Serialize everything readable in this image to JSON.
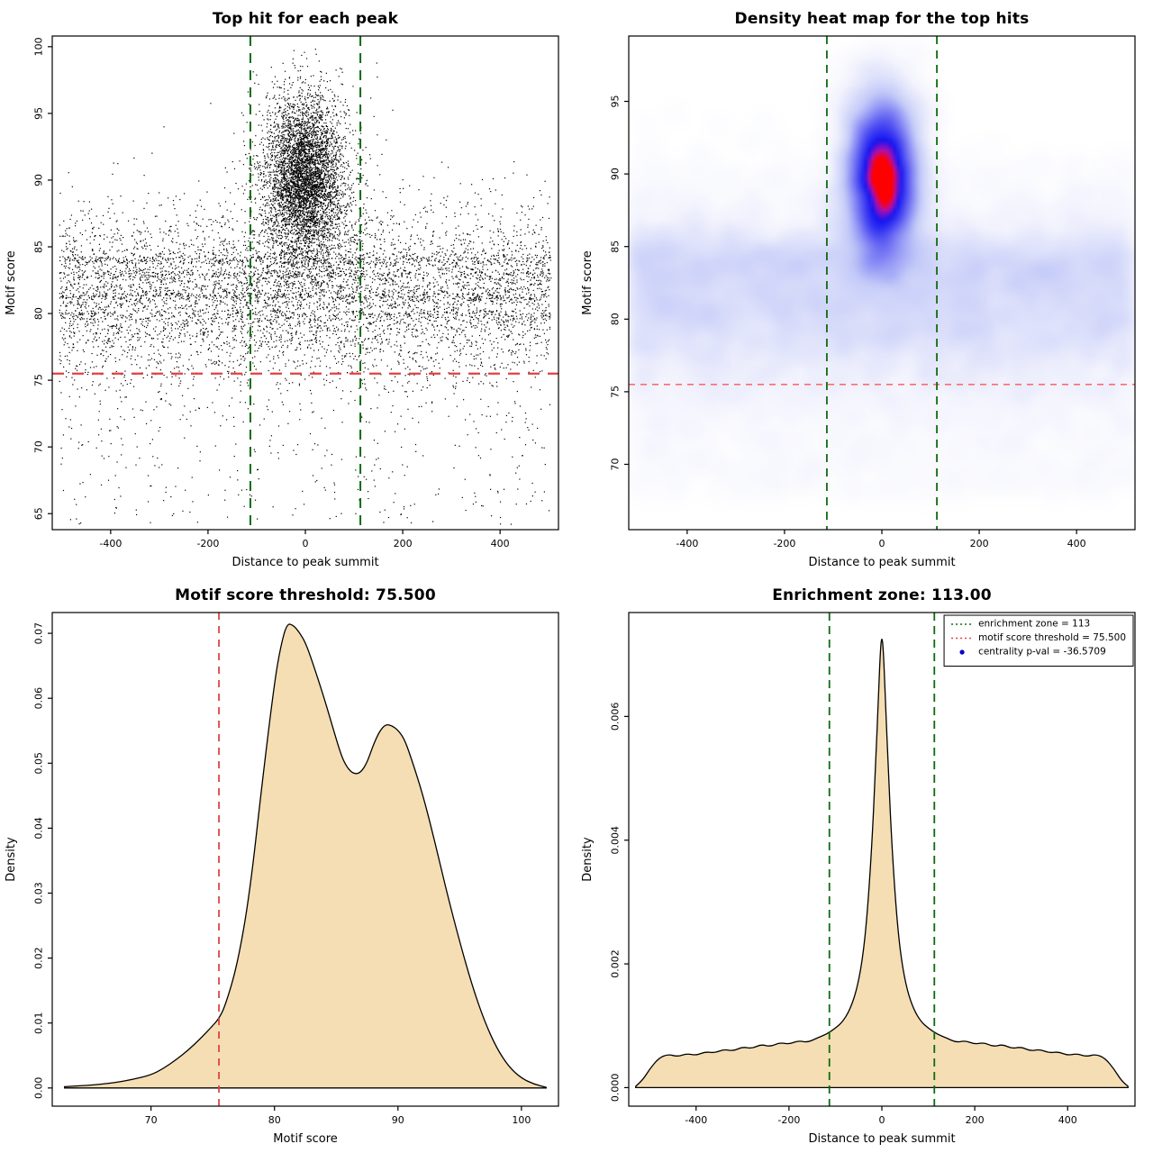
{
  "page": {
    "background": "#ffffff"
  },
  "chart_data": [
    {
      "type": "scatter",
      "title": "Top hit for each peak",
      "xlabel": "Distance to peak summit",
      "ylabel": "Motif score",
      "xlim": [
        -520,
        520
      ],
      "ylim": [
        63.8,
        100.8
      ],
      "xtick_vals": [
        -400,
        -200,
        0,
        200,
        400
      ],
      "xtick_labels": [
        "-400",
        "-200",
        "0",
        "200",
        "400"
      ],
      "ytick_vals": [
        65,
        70,
        75,
        80,
        85,
        90,
        95,
        100
      ],
      "ytick_labels": [
        "65",
        "70",
        "75",
        "80",
        "85",
        "90",
        "95",
        "100"
      ],
      "point_color": "#000000",
      "hline": {
        "y": 75.5,
        "color": "#e04040",
        "width": 2.2,
        "dash": [
          13,
          9
        ]
      },
      "vlines": [
        {
          "x": -113,
          "color": "#0f6b0f",
          "width": 2,
          "dash": [
            11,
            8
          ]
        },
        {
          "x": 113,
          "color": "#0f6b0f",
          "width": 2,
          "dash": [
            11,
            8
          ]
        }
      ],
      "sample": {
        "seed": 90211,
        "clusters": [
          {
            "n": 4500,
            "x": {
              "dist": "normal",
              "mean": -3,
              "sd": 40,
              "min": -260,
              "max": 260
            },
            "y": {
              "dist": "normal",
              "mean": 90.2,
              "sd": 3.0,
              "min": 75.5,
              "max": 100.2
            }
          },
          {
            "n": 800,
            "x": {
              "dist": "normal",
              "mean": 0,
              "sd": 75,
              "min": -350,
              "max": 350
            },
            "y": {
              "dist": "normal",
              "mean": 88,
              "sd": 4,
              "min": 74,
              "max": 100
            }
          },
          {
            "n": 5200,
            "x": {
              "dist": "uniform",
              "min": -505,
              "max": 505
            },
            "y": {
              "dist": "normal",
              "mean": 81.4,
              "sd": 3.3,
              "min": 68.5,
              "max": 96.5
            }
          },
          {
            "n": 380,
            "x": {
              "dist": "uniform",
              "min": -505,
              "max": 505
            },
            "y": {
              "dist": "normal",
              "mean": 84.0,
              "sd": 0.18,
              "min": 83.4,
              "max": 84.6
            }
          },
          {
            "n": 250,
            "x": {
              "dist": "uniform",
              "min": -505,
              "max": 505
            },
            "y": {
              "dist": "normal",
              "mean": 82.9,
              "sd": 0.18,
              "min": 82.3,
              "max": 83.5
            }
          },
          {
            "n": 300,
            "x": {
              "dist": "uniform",
              "min": -505,
              "max": 505
            },
            "y": {
              "dist": "normal",
              "mean": 81.3,
              "sd": 0.18,
              "min": 80.7,
              "max": 81.9
            }
          },
          {
            "n": 200,
            "x": {
              "dist": "uniform",
              "min": -505,
              "max": 505
            },
            "y": {
              "dist": "normal",
              "mean": 79.9,
              "sd": 0.18,
              "min": 79.3,
              "max": 80.5
            }
          },
          {
            "n": 420,
            "x": {
              "dist": "uniform",
              "min": -505,
              "max": 505
            },
            "y": {
              "dist": "uniform",
              "min": 64.2,
              "max": 76.5
            }
          }
        ]
      }
    },
    {
      "type": "heatmap",
      "title": "Density heat map for the top hits",
      "xlabel": "Distance to peak summit",
      "ylabel": "Motif score",
      "xlim": [
        -520,
        520
      ],
      "ylim": [
        65.5,
        99.5
      ],
      "xtick_vals": [
        -400,
        -200,
        0,
        200,
        400
      ],
      "xtick_labels": [
        "-400",
        "-200",
        "0",
        "200",
        "400"
      ],
      "ytick_vals": [
        70,
        75,
        80,
        85,
        90,
        95
      ],
      "ytick_labels": [
        "70",
        "75",
        "80",
        "85",
        "90",
        "95"
      ],
      "hline": {
        "y": 75.5,
        "color": "#ff5555",
        "width": 1.3,
        "dash": [
          7,
          6
        ]
      },
      "vlines": [
        {
          "x": -113,
          "color": "#0f6b0f",
          "width": 1.8,
          "dash": [
            9,
            7
          ]
        },
        {
          "x": 113,
          "color": "#0f6b0f",
          "width": 1.8,
          "dash": [
            9,
            7
          ]
        }
      ],
      "grid": {
        "nx": 140,
        "ny": 140,
        "kernel_sigma": 2.2
      },
      "gamma": 0.65,
      "colormap": [
        {
          "t": 0.0,
          "c": "#ffffff"
        },
        {
          "t": 0.1,
          "c": "#f2f3fd"
        },
        {
          "t": 0.3,
          "c": "#c3caf8"
        },
        {
          "t": 0.55,
          "c": "#6b6bf3"
        },
        {
          "t": 0.78,
          "c": "#1515f2"
        },
        {
          "t": 0.87,
          "c": "#b010b0"
        },
        {
          "t": 0.93,
          "c": "#ff0000"
        },
        {
          "t": 1.0,
          "c": "#ff0000"
        }
      ],
      "sample": {
        "seed": 42077,
        "clusters": [
          {
            "n": 6000,
            "x": {
              "dist": "normal",
              "mean": 0,
              "sd": 38,
              "min": -300,
              "max": 300
            },
            "y": {
              "dist": "normal",
              "mean": 89.8,
              "sd": 3.1,
              "min": 74,
              "max": 99
            }
          },
          {
            "n": 7000,
            "x": {
              "dist": "uniform",
              "min": -520,
              "max": 520
            },
            "y": {
              "dist": "normal",
              "mean": 81.2,
              "sd": 3.6,
              "min": 68,
              "max": 97
            }
          },
          {
            "n": 700,
            "x": {
              "dist": "uniform",
              "min": -520,
              "max": 520
            },
            "y": {
              "dist": "normal",
              "mean": 84.0,
              "sd": 0.8,
              "min": 80,
              "max": 88
            }
          },
          {
            "n": 500,
            "x": {
              "dist": "uniform",
              "min": -520,
              "max": 520
            },
            "y": {
              "dist": "uniform",
              "min": 68,
              "max": 76
            }
          }
        ]
      }
    },
    {
      "type": "density",
      "title": "Motif score threshold: 75.500",
      "xlabel": "Motif score",
      "ylabel": "Density",
      "xlim": [
        62,
        103
      ],
      "ylim": [
        -0.0028,
        0.0732
      ],
      "xtick_vals": [
        70,
        80,
        90,
        100
      ],
      "xtick_labels": [
        "70",
        "80",
        "90",
        "100"
      ],
      "ytick_vals": [
        0,
        0.01,
        0.02,
        0.03,
        0.04,
        0.05,
        0.06,
        0.07
      ],
      "ytick_labels": [
        "0.00",
        "0.01",
        "0.02",
        "0.03",
        "0.04",
        "0.05",
        "0.06",
        "0.07"
      ],
      "fill": "#f5deb3",
      "vlines": [
        {
          "x": 75.5,
          "color": "#dd4444",
          "width": 1.8,
          "dash": [
            8,
            7
          ]
        }
      ],
      "curve": {
        "x": [
          63,
          65,
          67,
          68.5,
          70,
          71,
          72,
          73,
          74,
          75,
          75.5,
          76,
          77,
          78,
          79,
          80,
          80.5,
          81,
          81.5,
          82,
          82.5,
          83,
          84,
          85,
          85.5,
          86,
          86.5,
          87,
          87.5,
          88,
          88.5,
          89,
          89.5,
          90,
          90.5,
          91,
          92,
          93,
          94,
          95,
          96,
          97,
          98,
          99,
          100,
          101,
          102
        ],
        "y": [
          0.0002,
          0.0004,
          0.0008,
          0.0013,
          0.002,
          0.003,
          0.0043,
          0.0058,
          0.0076,
          0.0096,
          0.0107,
          0.0126,
          0.019,
          0.03,
          0.047,
          0.0625,
          0.068,
          0.0715,
          0.0713,
          0.0702,
          0.0686,
          0.066,
          0.0602,
          0.0537,
          0.0507,
          0.049,
          0.0483,
          0.0486,
          0.0501,
          0.0528,
          0.0549,
          0.056,
          0.0558,
          0.0551,
          0.0538,
          0.0512,
          0.0453,
          0.0378,
          0.0298,
          0.0225,
          0.0158,
          0.0103,
          0.0061,
          0.0032,
          0.0015,
          0.0006,
          0.0001
        ]
      }
    },
    {
      "type": "density",
      "title": "Enrichment zone: 113.00",
      "xlabel": "Distance to peak summit",
      "ylabel": "Density",
      "xlim": [
        -545,
        545
      ],
      "ylim": [
        -0.0003,
        0.00768
      ],
      "xtick_vals": [
        -400,
        -200,
        0,
        200,
        400
      ],
      "xtick_labels": [
        "-400",
        "-200",
        "0",
        "200",
        "400"
      ],
      "ytick_vals": [
        0,
        0.002,
        0.004,
        0.006
      ],
      "ytick_labels": [
        "0.000",
        "0.002",
        "0.004",
        "0.006"
      ],
      "fill": "#f5deb3",
      "vlines": [
        {
          "x": -113,
          "color": "#0f6b0f",
          "width": 1.8,
          "dash": [
            9,
            6
          ]
        },
        {
          "x": 113,
          "color": "#0f6b0f",
          "width": 1.8,
          "dash": [
            9,
            6
          ]
        }
      ],
      "legend": {
        "items": [
          {
            "symbol": "line",
            "color": "#0f6b0f",
            "label": "enrichment zone = 113"
          },
          {
            "symbol": "line",
            "color": "#dd4444",
            "label": "motif score threshold = 75.500"
          },
          {
            "symbol": "dot",
            "color": "#0000cd",
            "label": "centrality p-val = -36.5709"
          }
        ]
      },
      "curve": {
        "x": [
          -530,
          -515,
          -500,
          -480,
          -460,
          -440,
          -420,
          -400,
          -380,
          -360,
          -340,
          -320,
          -300,
          -280,
          -260,
          -240,
          -220,
          -200,
          -180,
          -160,
          -140,
          -120,
          -100,
          -85,
          -70,
          -55,
          -42,
          -32,
          -22,
          -14,
          -7,
          -3,
          0,
          3,
          7,
          14,
          22,
          32,
          42,
          55,
          70,
          85,
          100,
          120,
          140,
          160,
          180,
          200,
          220,
          240,
          260,
          280,
          300,
          320,
          340,
          360,
          380,
          400,
          420,
          440,
          460,
          480,
          500,
          515,
          530
        ],
        "y": [
          2e-05,
          0.00012,
          0.0003,
          0.00048,
          0.00054,
          0.0005,
          0.00055,
          0.00052,
          0.00058,
          0.00056,
          0.00062,
          0.00059,
          0.00066,
          0.00063,
          0.0007,
          0.00066,
          0.00073,
          0.0007,
          0.00076,
          0.00073,
          0.0008,
          0.00086,
          0.00096,
          0.00106,
          0.00124,
          0.00155,
          0.00205,
          0.00275,
          0.00385,
          0.0051,
          0.0064,
          0.0071,
          0.0073,
          0.0071,
          0.0064,
          0.0051,
          0.00385,
          0.00275,
          0.00205,
          0.00155,
          0.00124,
          0.00106,
          0.00096,
          0.00086,
          0.0008,
          0.00073,
          0.00076,
          0.0007,
          0.00073,
          0.00066,
          0.0007,
          0.00063,
          0.00066,
          0.00059,
          0.00062,
          0.00056,
          0.00058,
          0.00052,
          0.00055,
          0.0005,
          0.00054,
          0.00048,
          0.0003,
          0.00012,
          2e-05
        ]
      }
    }
  ]
}
